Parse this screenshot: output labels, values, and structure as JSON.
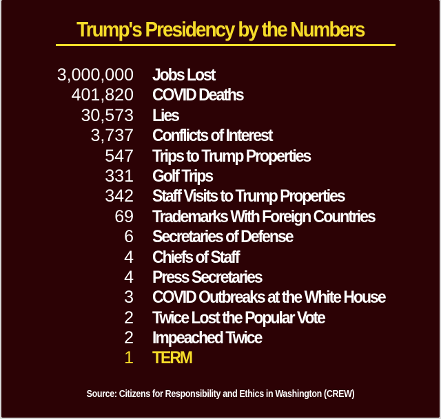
{
  "title": "Trump's Presidency by the Numbers",
  "stats": [
    {
      "number": "3,000,000",
      "label": "Jobs Lost"
    },
    {
      "number": "401,820",
      "label": "COVID Deaths"
    },
    {
      "number": "30,573",
      "label": "Lies"
    },
    {
      "number": "3,737",
      "label": "Conflicts of Interest"
    },
    {
      "number": "547",
      "label": "Trips to Trump Properties"
    },
    {
      "number": "331",
      "label": "Golf Trips"
    },
    {
      "number": "342",
      "label": "Staff Visits to Trump Properties"
    },
    {
      "number": "69",
      "label": "Trademarks With Foreign Countries"
    },
    {
      "number": "6",
      "label": "Secretaries of Defense"
    },
    {
      "number": "4",
      "label": "Chiefs of Staff"
    },
    {
      "number": "4",
      "label": "Press Secretaries"
    },
    {
      "number": "3",
      "label": "COVID Outbreaks at the White House"
    },
    {
      "number": "2",
      "label": "Twice Lost the Popular Vote"
    },
    {
      "number": "2",
      "label": "Impeached Twice"
    },
    {
      "number": "1",
      "label": "TERM"
    }
  ],
  "source": "Source: Citizens for Responsibility and Ethics in Washington (CREW)",
  "colors": {
    "background": "#2c0205",
    "accent": "#f6dc29",
    "text": "#ffffff"
  }
}
